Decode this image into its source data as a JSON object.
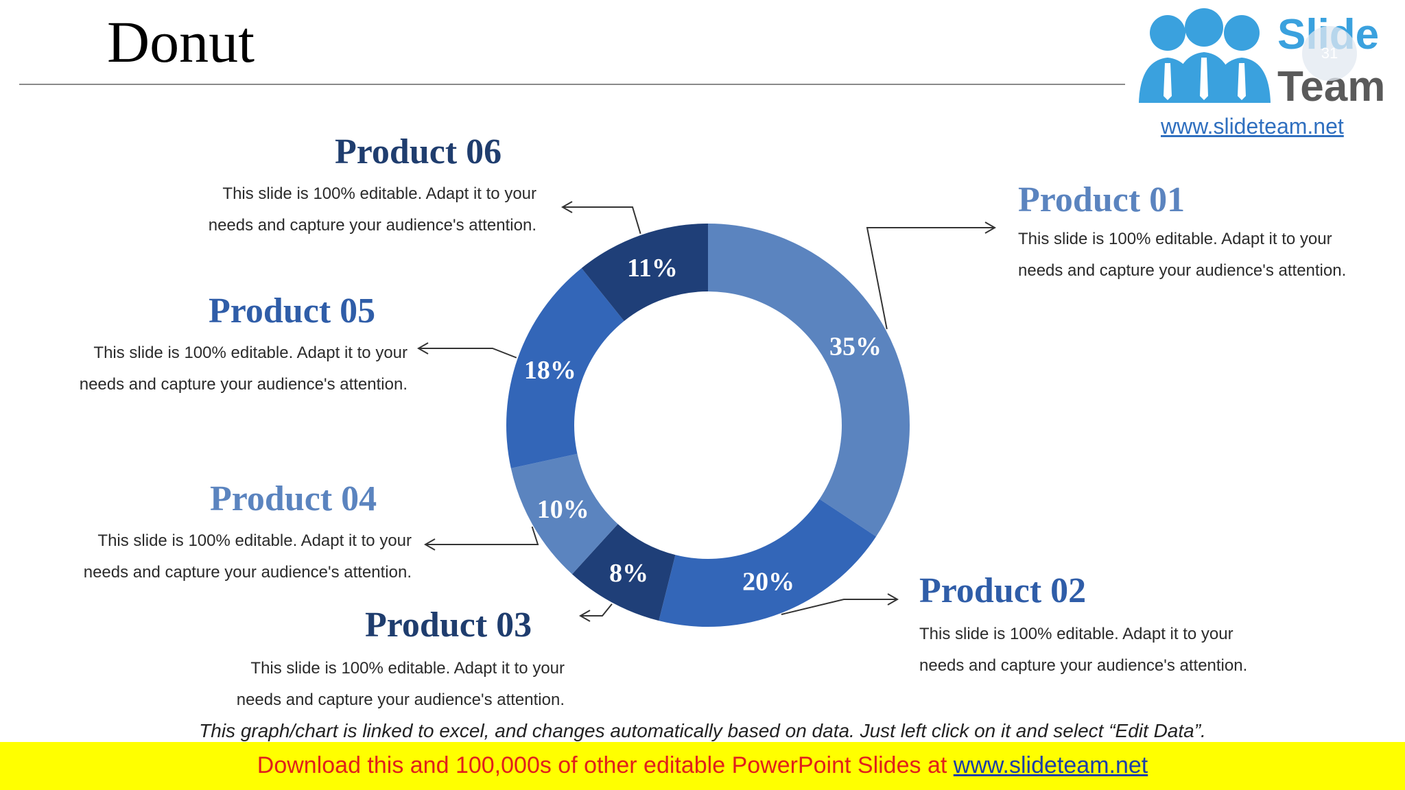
{
  "page": {
    "title": "Donut",
    "footnote": "This graph/chart is linked to excel, and changes automatically based on data. Just left click on it and select “Edit Data”.",
    "banner_text": "Download this and 100,000s of other editable PowerPoint Slides at ",
    "banner_link": "www.slideteam.net",
    "page_number": "31"
  },
  "logo": {
    "word1": "Slide",
    "word2": "Team",
    "url": "www.slideteam.net"
  },
  "products": [
    {
      "title": "Product 01",
      "desc1": "This slide is 100% editable. Adapt it to your",
      "desc2": "needs and capture your audience's attention.",
      "color": "#5b84bf"
    },
    {
      "title": "Product 02",
      "desc1": "This slide is 100% editable. Adapt it to your",
      "desc2": "needs and capture your audience's attention.",
      "color": "#2f5da8"
    },
    {
      "title": "Product 03",
      "desc1": "This slide is 100% editable. Adapt it to your",
      "desc2": "needs and capture your audience's attention.",
      "color": "#1f3d6e"
    },
    {
      "title": "Product 04",
      "desc1": "This slide is 100% editable. Adapt it to your",
      "desc2": "needs and capture your audience's attention.",
      "color": "#5b84bf"
    },
    {
      "title": "Product 05",
      "desc1": "This slide is 100% editable. Adapt it to your",
      "desc2": "needs and capture your audience's attention.",
      "color": "#2f5da8"
    },
    {
      "title": "Product 06",
      "desc1": "This slide is 100% editable. Adapt it to your",
      "desc2": "needs and capture your audience's attention.",
      "color": "#1f3d6e"
    }
  ],
  "chart_data": {
    "type": "pie",
    "variant": "donut",
    "categories": [
      "Product 01",
      "Product 02",
      "Product 03",
      "Product 04",
      "Product 05",
      "Product 06"
    ],
    "values": [
      35,
      20,
      8,
      10,
      18,
      11
    ],
    "labels": [
      "35%",
      "20%",
      "8%",
      "10%",
      "18%",
      "11%"
    ],
    "colors": [
      "#5b84bf",
      "#3366b8",
      "#1f3f78",
      "#5b84bf",
      "#3366b8",
      "#1f3f78"
    ],
    "start": "top, clockwise"
  }
}
